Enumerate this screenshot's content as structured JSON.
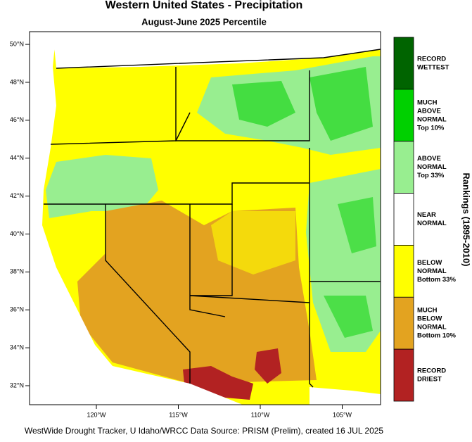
{
  "header": {
    "title": "Western United States - Precipitation",
    "subtitle": "August-June 2025 Percentile"
  },
  "map": {
    "lat_ticks": [
      {
        "value": 50,
        "label": "50°N"
      },
      {
        "value": 48,
        "label": "48°N"
      },
      {
        "value": 46,
        "label": "46°N"
      },
      {
        "value": 44,
        "label": "44°N"
      },
      {
        "value": 42,
        "label": "42°N"
      },
      {
        "value": 40,
        "label": "40°N"
      },
      {
        "value": 38,
        "label": "38°N"
      },
      {
        "value": 36,
        "label": "36°N"
      },
      {
        "value": 34,
        "label": "34°N"
      },
      {
        "value": 32,
        "label": "32°N"
      }
    ],
    "lon_ticks": [
      {
        "value": -120,
        "label": "120°W"
      },
      {
        "value": -115,
        "label": "115°W"
      },
      {
        "value": -110,
        "label": "110°W"
      },
      {
        "value": -105,
        "label": "105°W"
      }
    ]
  },
  "legend": {
    "title": "Rankings (1895-2010)",
    "items": [
      {
        "lines": [
          "RECORD",
          "WETTEST"
        ],
        "color": "#006400"
      },
      {
        "lines": [
          "MUCH",
          "ABOVE",
          "NORMAL",
          "Top 10%"
        ],
        "color": "#00d000"
      },
      {
        "lines": [
          "ABOVE",
          "NORMAL",
          "Top 33%"
        ],
        "color": "#98ee90"
      },
      {
        "lines": [
          "NEAR",
          "NORMAL"
        ],
        "color": "#ffffff"
      },
      {
        "lines": [
          "BELOW",
          "NORMAL",
          "Bottom 33%"
        ],
        "color": "#ffff00"
      },
      {
        "lines": [
          "MUCH",
          "BELOW",
          "NORMAL",
          "Bottom 10%"
        ],
        "color": "#e3a320"
      },
      {
        "lines": [
          "RECORD",
          "DRIEST"
        ],
        "color": "#b22222"
      }
    ]
  },
  "footer": {
    "credit": "WestWide Drought Tracker, U Idaho/WRCC Data Source: PRISM (Prelim), created 16 JUL 2025"
  }
}
